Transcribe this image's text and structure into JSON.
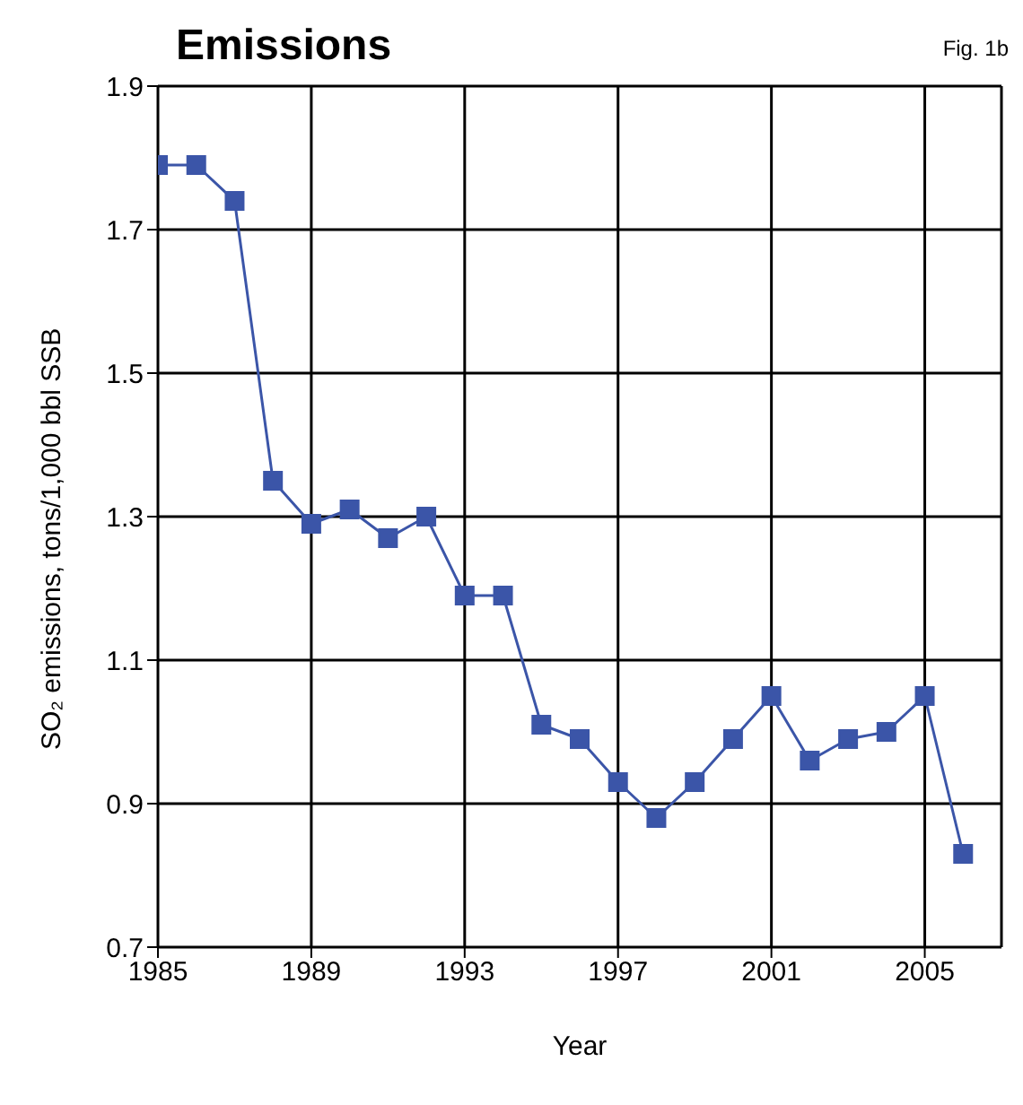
{
  "chart_data": {
    "type": "line",
    "title": "Emissions",
    "annotations": [
      "Fig. 1b"
    ],
    "xlabel": "Year",
    "ylabel": "SO₂ emissions, tons/1,000 bbl SSB",
    "x": [
      1985,
      1986,
      1987,
      1988,
      1989,
      1990,
      1991,
      1992,
      1993,
      1994,
      1995,
      1996,
      1997,
      1998,
      1999,
      2000,
      2001,
      2002,
      2003,
      2004,
      2005,
      2006
    ],
    "series": [
      {
        "color": "#3b55a8",
        "values": [
          1.79,
          1.79,
          1.74,
          1.35,
          1.29,
          1.31,
          1.27,
          1.3,
          1.19,
          1.19,
          1.01,
          0.99,
          0.93,
          0.88,
          0.93,
          0.99,
          1.05,
          0.96,
          0.99,
          1.0,
          1.05,
          0.83
        ]
      }
    ],
    "xlim": [
      1985,
      2007
    ],
    "xticks": [
      1985,
      1989,
      1993,
      1997,
      2001,
      2005
    ],
    "ylim": [
      0.7,
      1.9
    ],
    "yticks": [
      0.7,
      0.9,
      1.1,
      1.3,
      1.5,
      1.7,
      1.9
    ],
    "grid": true,
    "marker": "square",
    "line_style": "solid",
    "legend": false
  }
}
